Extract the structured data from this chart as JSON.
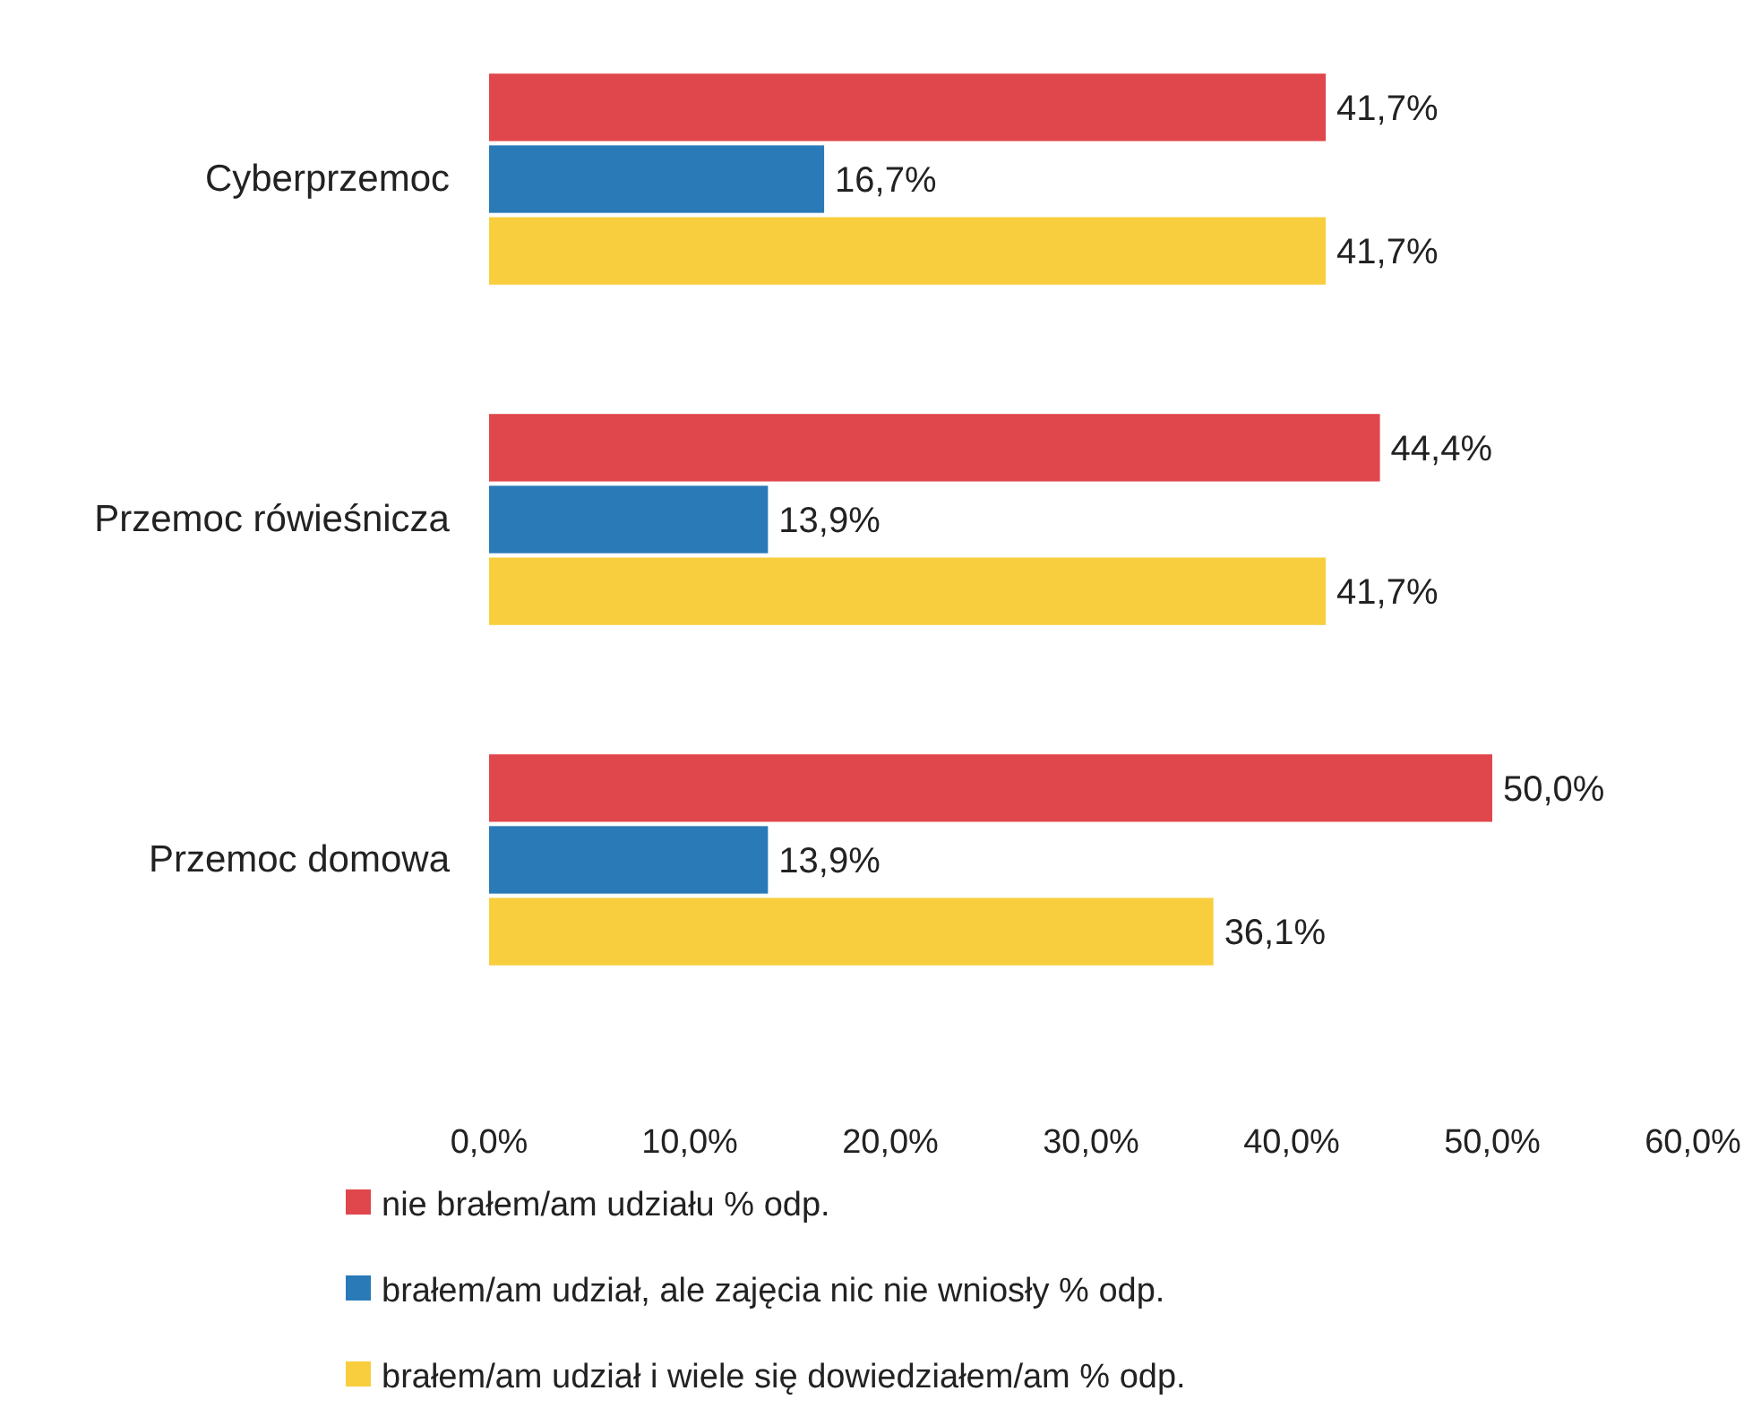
{
  "chart_data": {
    "type": "bar",
    "orientation": "horizontal",
    "categories": [
      "Cyberprzemoc",
      "Przemoc rówieśnicza",
      "Przemoc domowa"
    ],
    "series": [
      {
        "name": "nie brałem/am udziału % odp.",
        "color": "#e0474c",
        "values": [
          41.7,
          44.4,
          50.0
        ],
        "value_labels": [
          "41,7%",
          "44,4%",
          "50,0%"
        ]
      },
      {
        "name": "brałem/am udział, ale zajęcia nic nie wniosły % odp.",
        "color": "#2a7ab8",
        "values": [
          16.7,
          13.9,
          13.9
        ],
        "value_labels": [
          "16,7%",
          "13,9%",
          "13,9%"
        ]
      },
      {
        "name": "brałem/am udział i wiele się dowiedziałem/am % odp.",
        "color": "#f9ce3e",
        "values": [
          41.7,
          41.7,
          36.1
        ],
        "value_labels": [
          "41,7%",
          "41,7%",
          "36,1%"
        ]
      }
    ],
    "xlim": [
      0,
      60
    ],
    "xticks": [
      {
        "value": 0,
        "label": "0,0%"
      },
      {
        "value": 10,
        "label": "10,0%"
      },
      {
        "value": 20,
        "label": "20,0%"
      },
      {
        "value": 30,
        "label": "30,0%"
      },
      {
        "value": 40,
        "label": "40,0%"
      },
      {
        "value": 50,
        "label": "50,0%"
      },
      {
        "value": 60,
        "label": "60,0%"
      }
    ],
    "grid": false,
    "legend": "bottom"
  }
}
